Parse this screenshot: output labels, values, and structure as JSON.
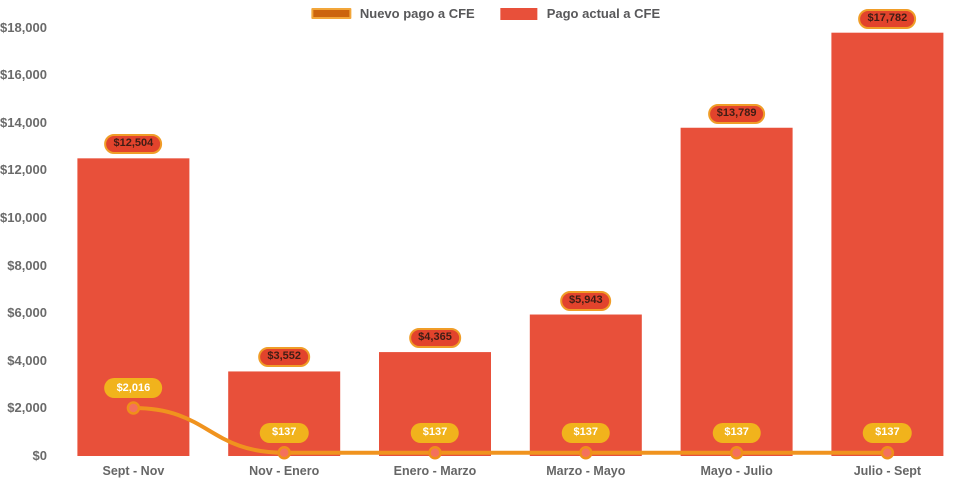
{
  "legend": {
    "items": [
      {
        "label": "Nuevo pago a CFE",
        "swatch": "line",
        "fill": "#cc640e",
        "border": "#f2a63a"
      },
      {
        "label": "Pago actual a CFE",
        "swatch": "bar",
        "fill": "#e8503a"
      }
    ]
  },
  "chart_data": {
    "type": "bar",
    "title": "",
    "categories": [
      "Sept - Nov",
      "Nov - Enero",
      "Enero - Marzo",
      "Marzo - Mayo",
      "Mayo - Julio",
      "Julio - Sept"
    ],
    "series": [
      {
        "name": "Pago actual a CFE",
        "type": "bar",
        "color": "#e8503a",
        "values": [
          12504,
          3552,
          4365,
          5943,
          13789,
          17782
        ],
        "labels": [
          "$12,504",
          "$3,552",
          "$4,365",
          "$5,943",
          "$13,789",
          "$17,782"
        ]
      },
      {
        "name": "Nuevo pago a CFE",
        "type": "line",
        "color": "#f0931e",
        "values": [
          2016,
          137,
          137,
          137,
          137,
          137
        ],
        "labels": [
          "$2,016",
          "$137",
          "$137",
          "$137",
          "$137",
          "$137"
        ]
      }
    ],
    "ylabel": "",
    "xlabel": "",
    "ylim": [
      0,
      18000
    ],
    "y_tick_step": 2000,
    "y_tick_labels": [
      "$0",
      "$2,000",
      "$4,000",
      "$6,000",
      "$8,000",
      "$10,000",
      "$12,000",
      "$14,000",
      "$16,000",
      "$18,000"
    ],
    "grid": false,
    "legend_position": "top"
  },
  "colors": {
    "bar": "#e8503a",
    "line": "#f0931e",
    "marker_fill": "#f4715c",
    "marker_stroke": "#ef8f1a",
    "badge_bar_bg": "#e2432c",
    "badge_bar_border": "#f09d28",
    "badge_bar_text": "#3f1d15",
    "badge_line_bg": "#f1b31c",
    "badge_line_text": "#ffffff",
    "axis_text": "#6a6a6a"
  }
}
